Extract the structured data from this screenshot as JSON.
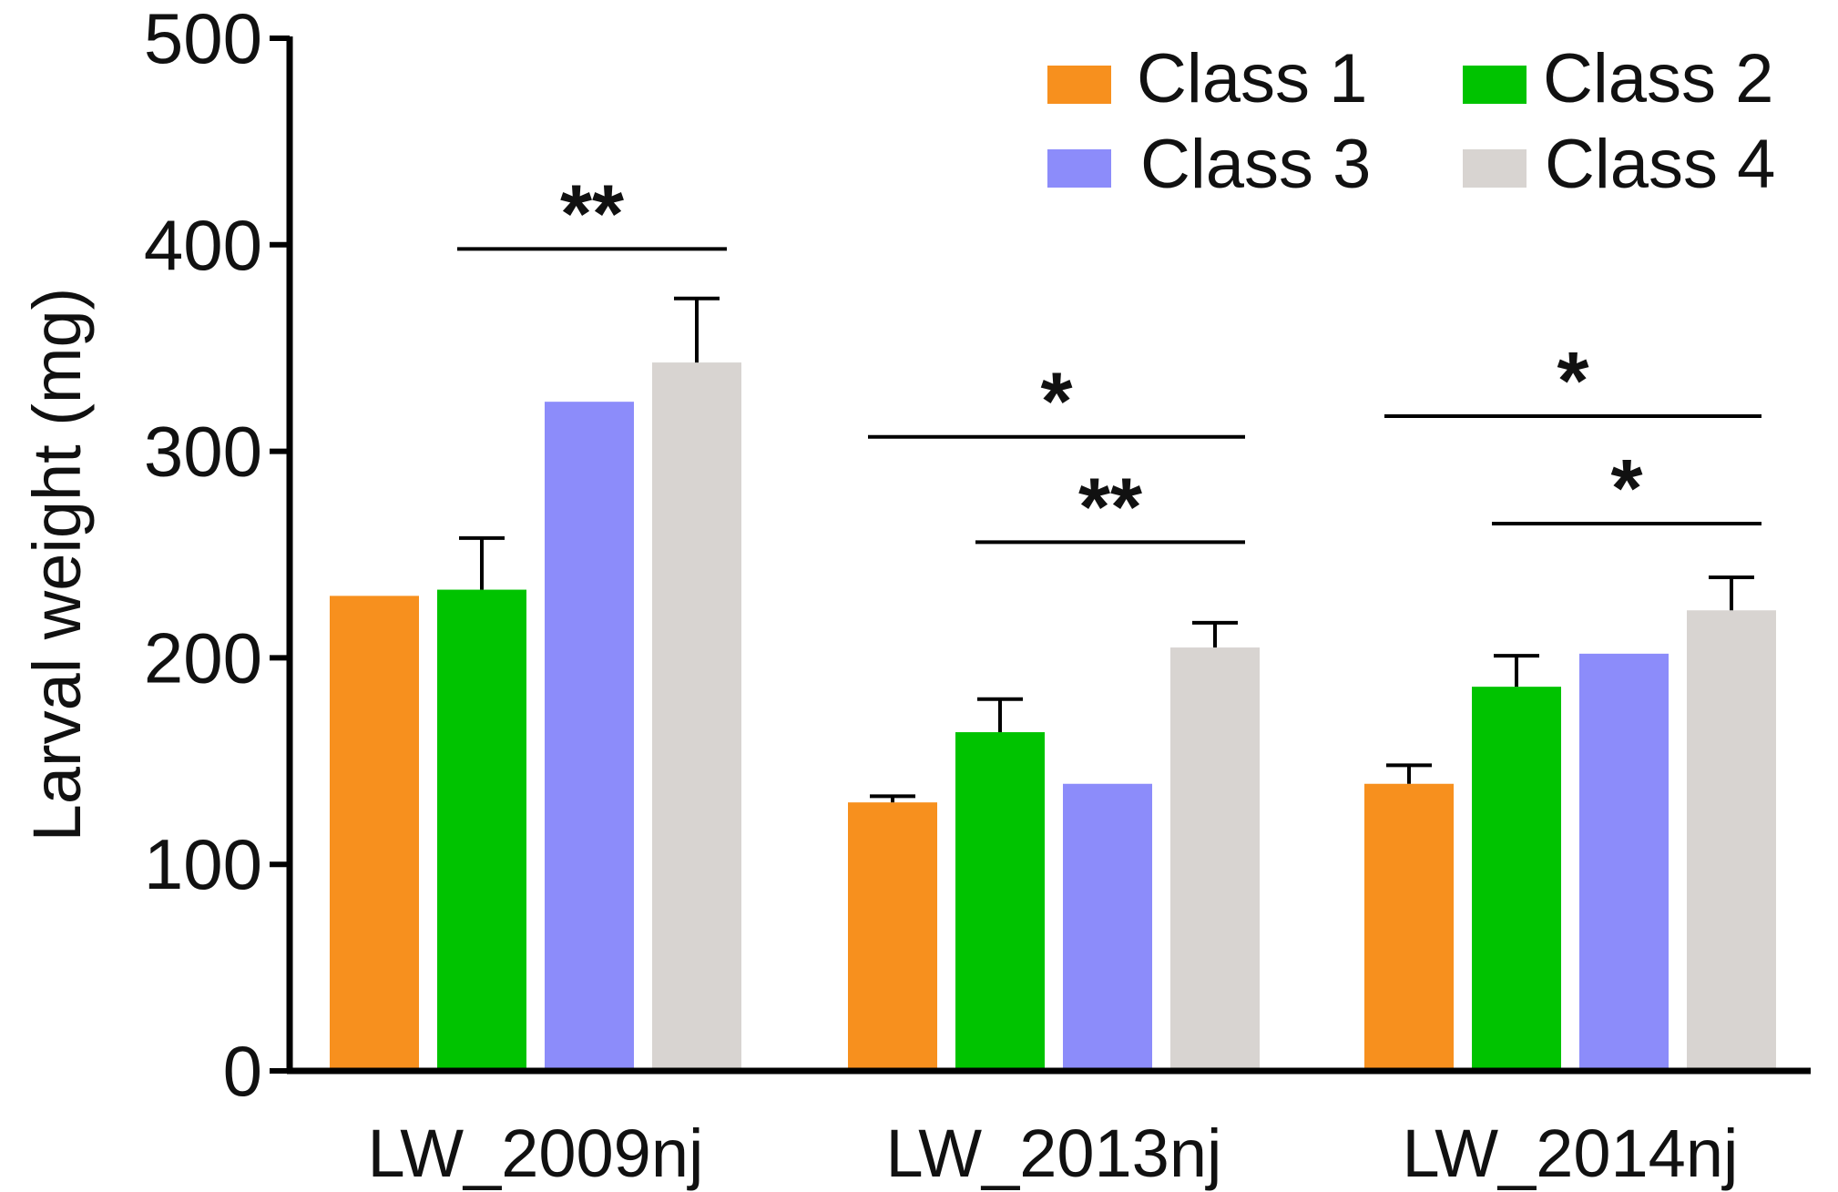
{
  "chart_data": {
    "type": "bar",
    "title": "",
    "xlabel": "",
    "ylabel": "Larval weight (mg)",
    "ylim": [
      0,
      500
    ],
    "yticks": [
      0,
      100,
      200,
      300,
      400,
      500
    ],
    "categories": [
      "LW_2009nj",
      "LW_2013nj",
      "LW_2014nj"
    ],
    "legend_position": "top-right",
    "series": [
      {
        "name": "Class 1",
        "color": "#F7901E",
        "values": [
          230,
          130,
          139
        ],
        "errors": [
          null,
          3,
          9
        ]
      },
      {
        "name": "Class 2",
        "color": "#00C300",
        "values": [
          233,
          164,
          186
        ],
        "errors": [
          25,
          16,
          15
        ]
      },
      {
        "name": "Class 3",
        "color": "#8C8CFA",
        "values": [
          324,
          139,
          202
        ],
        "errors": [
          null,
          null,
          null
        ]
      },
      {
        "name": "Class 4",
        "color": "#D8D4D1",
        "values": [
          343,
          205,
          223
        ],
        "errors": [
          31,
          12,
          16
        ]
      }
    ],
    "significance": [
      {
        "group": 0,
        "from_series": 1,
        "to_series": 3,
        "level": 398,
        "label": "**"
      },
      {
        "group": 1,
        "from_series": 0,
        "to_series": 3,
        "level": 307,
        "label": "*"
      },
      {
        "group": 1,
        "from_series": 1,
        "to_series": 3,
        "level": 256,
        "label": "**"
      },
      {
        "group": 2,
        "from_series": 0,
        "to_series": 3,
        "level": 317,
        "label": "*"
      },
      {
        "group": 2,
        "from_series": 1,
        "to_series": 3,
        "level": 265,
        "label": "*"
      }
    ]
  }
}
